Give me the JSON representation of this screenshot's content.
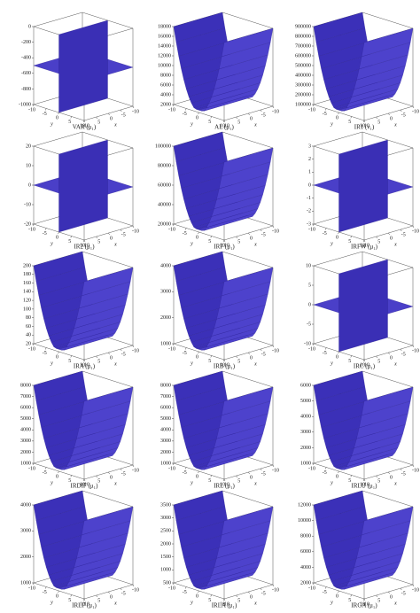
{
  "chart_data": [
    {
      "type": "surface",
      "title": "VAR (μ₁)",
      "zlim": [
        -1000,
        0
      ],
      "zticks": [
        -1000,
        -800,
        -600,
        -400,
        -200,
        0
      ],
      "xlabel": "x",
      "ylabel": "y",
      "xticks": [
        10,
        5,
        0,
        -5,
        -10
      ],
      "yticks": [
        -10,
        -5,
        0,
        5,
        10
      ]
    },
    {
      "type": "surface",
      "title": "AL (μ₁)",
      "zlim": [
        2000,
        18000
      ],
      "zticks": [
        2000,
        4000,
        6000,
        8000,
        10000,
        12000,
        14000,
        16000,
        18000
      ],
      "xlabel": "x",
      "ylabel": "y",
      "xticks": [
        10,
        5,
        0,
        -5,
        -10
      ],
      "yticks": [
        -10,
        -5,
        0,
        5,
        10
      ]
    },
    {
      "type": "surface",
      "title": "IR1 (ν₁)",
      "zlim": [
        100000,
        900000
      ],
      "zticks": [
        100000,
        200000,
        300000,
        400000,
        500000,
        600000,
        700000,
        800000,
        900000
      ],
      "xlabel": "x",
      "ylabel": "y",
      "xticks": [
        10,
        5,
        0,
        -5,
        -10
      ],
      "yticks": [
        -10,
        -5,
        0,
        5,
        10
      ]
    },
    {
      "type": "surface",
      "title": "IR2 (μ₁)",
      "zlim": [
        -20,
        20
      ],
      "zticks": [
        -20,
        -10,
        0,
        10,
        20
      ],
      "xlabel": "x",
      "ylabel": "y",
      "xticks": [
        10,
        5,
        0,
        -5,
        -10
      ],
      "yticks": [
        -10,
        -5,
        0,
        5,
        10
      ]
    },
    {
      "type": "surface",
      "title": "IRF (μ₁)",
      "zlim": [
        20000,
        100000
      ],
      "zticks": [
        20000,
        40000,
        60000,
        80000,
        100000
      ],
      "xlabel": "x",
      "ylabel": "y",
      "xticks": [
        10,
        5,
        0,
        -5,
        -10
      ],
      "yticks": [
        -10,
        -5,
        0,
        5,
        10
      ]
    },
    {
      "type": "surface",
      "title": "IRFW (μ₁)",
      "zlim": [
        -3,
        3
      ],
      "zticks": [
        -3,
        -2,
        -1,
        0,
        1,
        2,
        3
      ],
      "xlabel": "x",
      "ylabel": "y",
      "xticks": [
        10,
        5,
        0,
        -5,
        -10
      ],
      "yticks": [
        -10,
        -5,
        0,
        5,
        10
      ]
    },
    {
      "type": "surface",
      "title": "IRA (μ₁)",
      "zlim": [
        20,
        200
      ],
      "zticks": [
        20,
        40,
        60,
        80,
        100,
        120,
        140,
        160,
        180,
        200
      ],
      "xlabel": "x",
      "ylabel": "y",
      "xticks": [
        10,
        5,
        0,
        -5,
        -10
      ],
      "yticks": [
        -10,
        -5,
        0,
        5,
        10
      ]
    },
    {
      "type": "surface",
      "title": "IRB (μ₁)",
      "zlim": [
        1000,
        4000
      ],
      "zticks": [
        1000,
        2000,
        3000,
        4000
      ],
      "xlabel": "x",
      "ylabel": "y",
      "xticks": [
        10,
        5,
        0,
        -5,
        -10
      ],
      "yticks": [
        -10,
        -5,
        0,
        5,
        10
      ]
    },
    {
      "type": "surface",
      "title": "IRC (μ₁)",
      "zlim": [
        -10,
        10
      ],
      "zticks": [
        -10,
        -5,
        0,
        5,
        10
      ],
      "xlabel": "x",
      "ylabel": "y",
      "xticks": [
        10,
        5,
        0,
        -5,
        -10
      ],
      "yticks": [
        -10,
        -5,
        0,
        5,
        10
      ]
    },
    {
      "type": "surface",
      "title": "IRDIF (μ₁)",
      "zlim": [
        1000,
        8000
      ],
      "zticks": [
        1000,
        2000,
        3000,
        4000,
        5000,
        6000,
        7000,
        8000
      ],
      "xlabel": "x",
      "ylabel": "y",
      "xticks": [
        10,
        5,
        0,
        -5,
        -10
      ],
      "yticks": [
        -10,
        -5,
        0,
        5,
        10
      ]
    },
    {
      "type": "surface",
      "title": "IRL (μ₁)",
      "zlim": [
        1000,
        8000
      ],
      "zticks": [
        1000,
        2000,
        3000,
        4000,
        5000,
        6000,
        7000,
        8000
      ],
      "xlabel": "x",
      "ylabel": "y",
      "xticks": [
        10,
        5,
        0,
        -5,
        -10
      ],
      "yticks": [
        -10,
        -5,
        0,
        5,
        10
      ]
    },
    {
      "type": "surface",
      "title": "IRLU (μ₁)",
      "zlim": [
        1000,
        6000
      ],
      "zticks": [
        1000,
        2000,
        3000,
        4000,
        5000,
        6000
      ],
      "xlabel": "x",
      "ylabel": "y",
      "xticks": [
        10,
        5,
        0,
        -5,
        -10
      ],
      "yticks": [
        -10,
        -5,
        0,
        5,
        10
      ]
    },
    {
      "type": "surface",
      "title": "IRLF (μ₁)",
      "zlim": [
        1000,
        4000
      ],
      "zticks": [
        1000,
        2000,
        3000,
        4000
      ],
      "xlabel": "x",
      "ylabel": "y",
      "xticks": [
        10,
        5,
        0,
        -5,
        -10
      ],
      "yticks": [
        -10,
        -5,
        0,
        5,
        10
      ]
    },
    {
      "type": "surface",
      "title": "IRLA (μ₁)",
      "zlim": [
        500,
        3500
      ],
      "zticks": [
        500,
        1000,
        1500,
        2000,
        2500,
        3000,
        3500
      ],
      "xlabel": "x",
      "ylabel": "y",
      "xticks": [
        10,
        5,
        0,
        -5,
        -10
      ],
      "yticks": [
        -10,
        -5,
        0,
        5,
        10
      ]
    },
    {
      "type": "surface",
      "title": "IRGA (μ₁)",
      "zlim": [
        2000,
        12000
      ],
      "zticks": [
        2000,
        4000,
        6000,
        8000,
        10000,
        12000
      ],
      "xlabel": "x",
      "ylabel": "y",
      "xticks": [
        10,
        5,
        0,
        -5,
        -10
      ],
      "yticks": [
        -10,
        -5,
        0,
        5,
        10
      ]
    }
  ]
}
